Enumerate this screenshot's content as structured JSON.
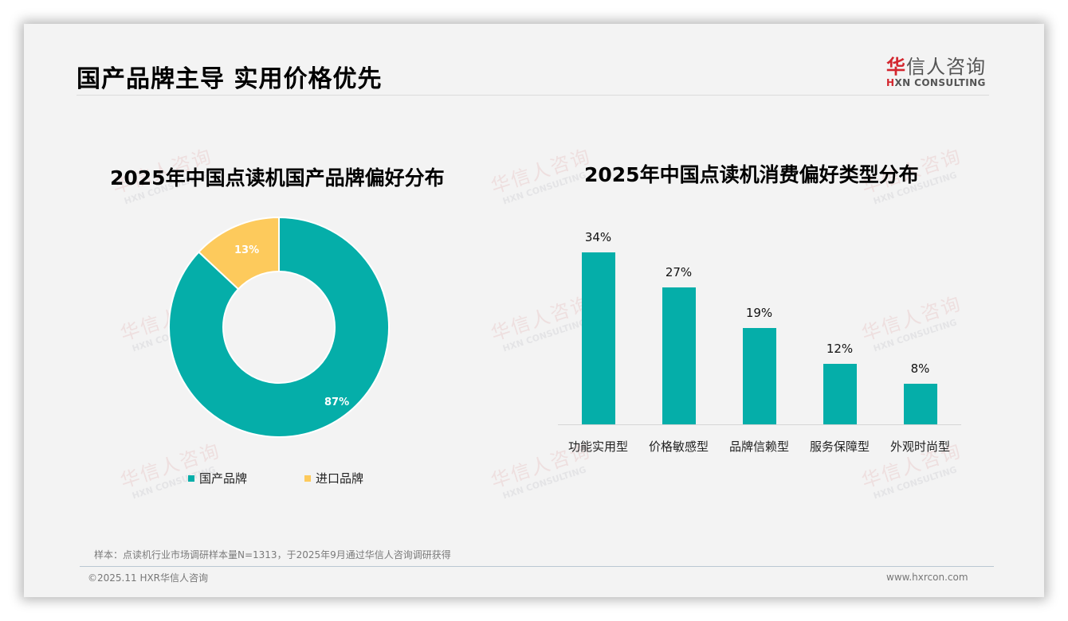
{
  "page": {
    "title": "国产品牌主导 实用价格优先"
  },
  "logo": {
    "cn_mark": "华",
    "cn_rest": "信人咨询",
    "en_mark": "H",
    "en_rest": "XN CONSULTING"
  },
  "watermark": {
    "cn": "华信人咨询",
    "en": "HXN CONSULTING"
  },
  "colors": {
    "teal": "#05aea9",
    "yellow": "#fdca5c",
    "brand_red": "#d3262e"
  },
  "donut": {
    "title": "2025年中国点读机国产品牌偏好分布",
    "legend": [
      {
        "label": "国产品牌",
        "color": "#05aea9"
      },
      {
        "label": "进口品牌",
        "color": "#fdca5c"
      }
    ],
    "labels": [
      "87%",
      "13%"
    ]
  },
  "bars": {
    "title": "2025年中国点读机消费偏好类型分布",
    "items": [
      {
        "category": "功能实用型",
        "value": "34%"
      },
      {
        "category": "价格敏感型",
        "value": "27%"
      },
      {
        "category": "品牌信赖型",
        "value": "19%"
      },
      {
        "category": "服务保障型",
        "value": "12%"
      },
      {
        "category": "外观时尚型",
        "value": "8%"
      }
    ]
  },
  "footer": {
    "note": "样本：点读机行业市场调研样本量N=1313，于2025年9月通过华信人咨询调研获得",
    "copyright": "©2025.11 HXR华信人咨询",
    "website": "www.hxrcon.com"
  },
  "chart_data": [
    {
      "type": "pie",
      "title": "2025年中国点读机国产品牌偏好分布",
      "donut": true,
      "categories": [
        "国产品牌",
        "进口品牌"
      ],
      "values": [
        87,
        13
      ],
      "unit": "%",
      "colors": [
        "#05aea9",
        "#fdca5c"
      ],
      "legend_position": "bottom"
    },
    {
      "type": "bar",
      "title": "2025年中国点读机消费偏好类型分布",
      "categories": [
        "功能实用型",
        "价格敏感型",
        "品牌信赖型",
        "服务保障型",
        "外观时尚型"
      ],
      "values": [
        34,
        27,
        19,
        12,
        8
      ],
      "unit": "%",
      "xlabel": "",
      "ylabel": "",
      "ylim": [
        0,
        40
      ],
      "grid": false,
      "color": "#05aea9"
    }
  ]
}
